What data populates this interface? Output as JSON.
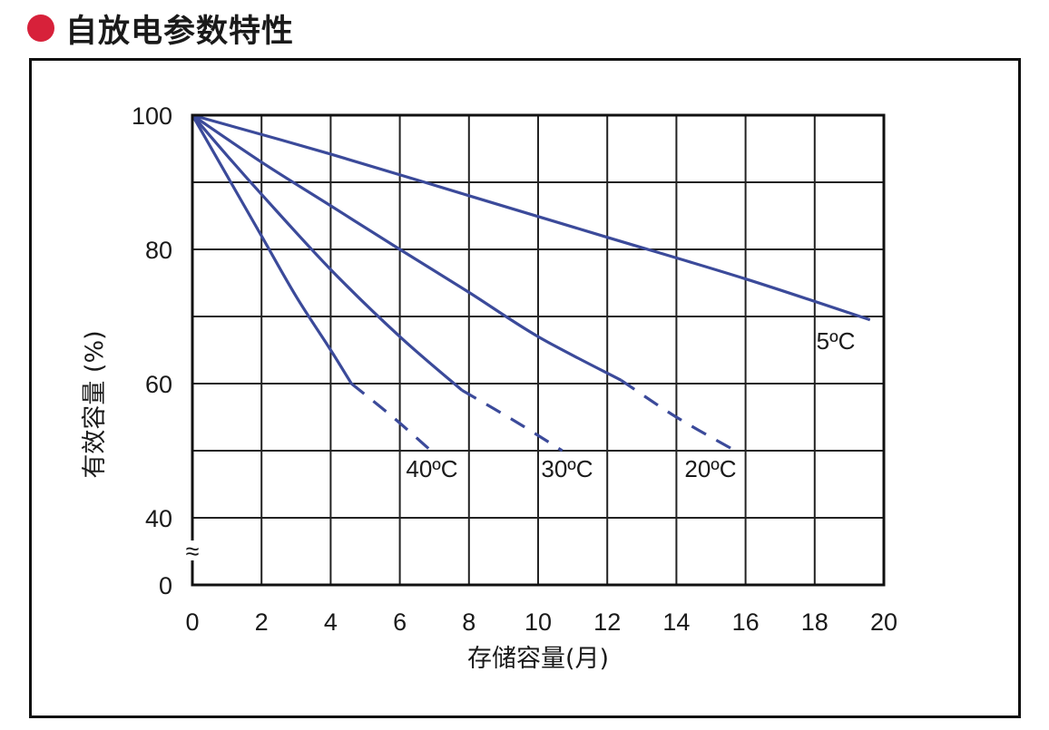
{
  "header": {
    "title": "自放电参数特性",
    "bullet_color": "#d7213a"
  },
  "chart_data": {
    "type": "line",
    "title": "",
    "xlabel": "存储容量(月)",
    "ylabel": "有效容量 (%)",
    "xlim": [
      0,
      20
    ],
    "x_ticks": [
      "0",
      "2",
      "4",
      "6",
      "8",
      "10",
      "12",
      "14",
      "16",
      "18",
      "20"
    ],
    "y_ticks": [
      {
        "value": 100,
        "label": "100"
      },
      {
        "value": 80,
        "label": "80"
      },
      {
        "value": 60,
        "label": "60"
      },
      {
        "value": 40,
        "label": "40"
      },
      {
        "value": 0,
        "label": "0"
      }
    ],
    "axis_break_symbol": "≈",
    "grid": true,
    "line_color": "#3b4a9a",
    "series": [
      {
        "name": "5ºC",
        "solid": [
          [
            0,
            100
          ],
          [
            4,
            94.2
          ],
          [
            8,
            88
          ],
          [
            12,
            81.8
          ],
          [
            16,
            75.6
          ],
          [
            19.6,
            69.5
          ]
        ],
        "dashed": []
      },
      {
        "name": "20ºC",
        "solid": [
          [
            0,
            100
          ],
          [
            2,
            93
          ],
          [
            4,
            86.5
          ],
          [
            6,
            80
          ],
          [
            8,
            73.6
          ],
          [
            10,
            67
          ],
          [
            12.4,
            60.5
          ]
        ],
        "dashed": [
          [
            12.4,
            60.5
          ],
          [
            14,
            55
          ],
          [
            15.7,
            50
          ]
        ]
      },
      {
        "name": "30ºC",
        "solid": [
          [
            0,
            100
          ],
          [
            1,
            94
          ],
          [
            2,
            88.2
          ],
          [
            4,
            77
          ],
          [
            6,
            67
          ],
          [
            7.8,
            59
          ]
        ],
        "dashed": [
          [
            7.8,
            59
          ],
          [
            9.3,
            54.5
          ],
          [
            10.7,
            50
          ]
        ]
      },
      {
        "name": "40ºC",
        "solid": [
          [
            0,
            100
          ],
          [
            1,
            91
          ],
          [
            2,
            82
          ],
          [
            3,
            73
          ],
          [
            4,
            65
          ],
          [
            4.6,
            60
          ]
        ],
        "dashed": [
          [
            4.6,
            60
          ],
          [
            5.8,
            55
          ],
          [
            6.9,
            50
          ]
        ]
      }
    ]
  }
}
